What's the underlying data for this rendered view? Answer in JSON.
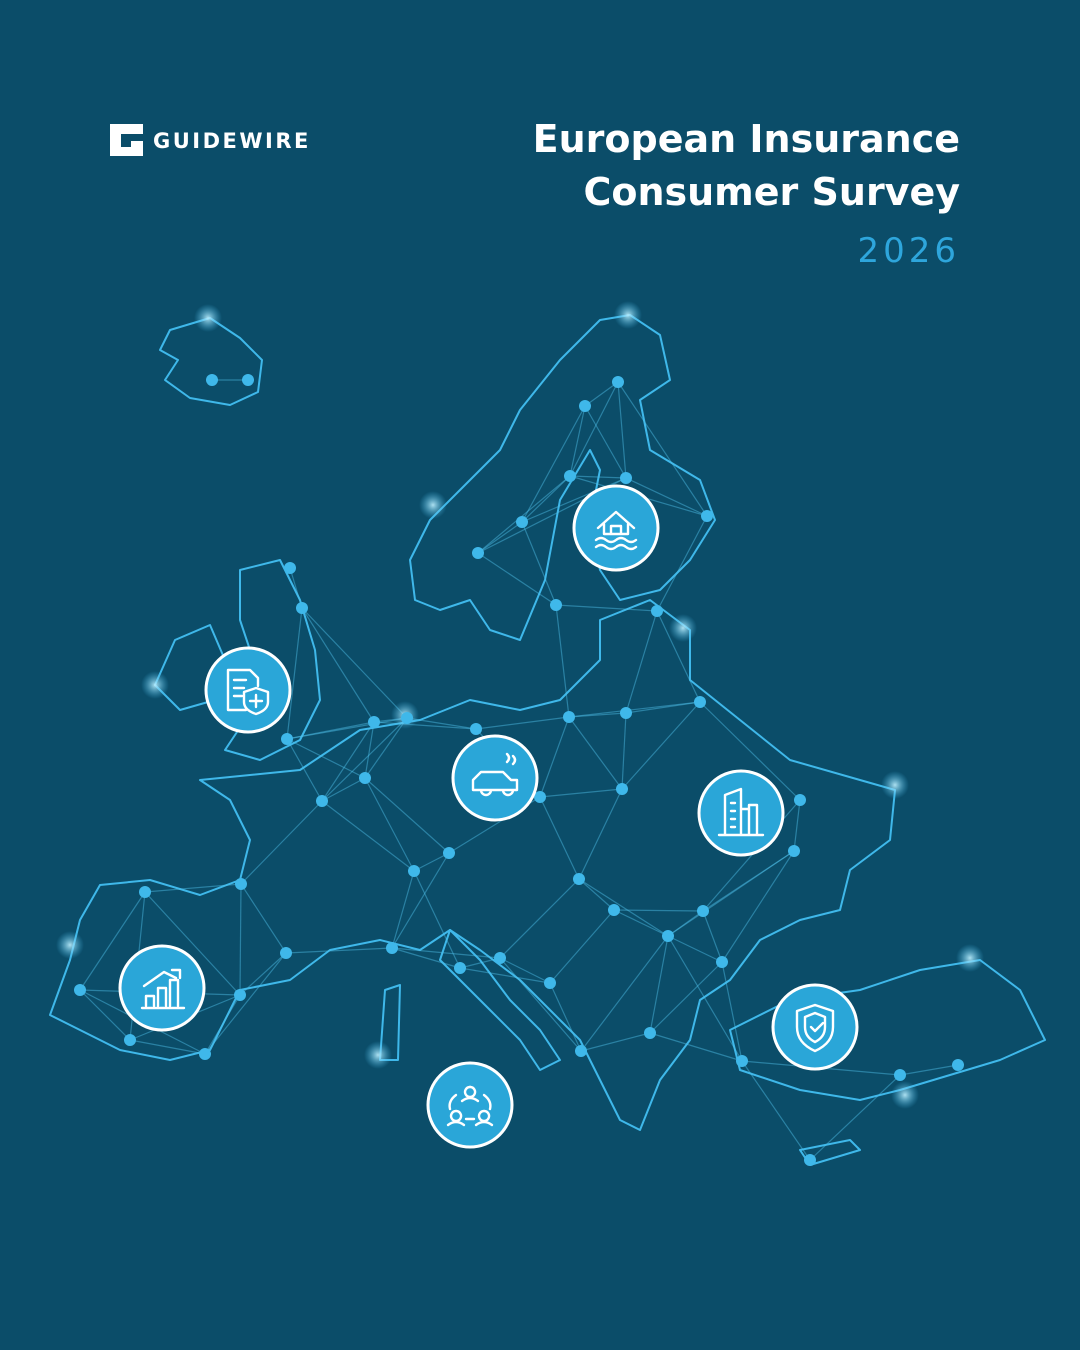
{
  "logo": {
    "text": "GUIDEWIRE"
  },
  "title": {
    "lines": [
      "European Insurance",
      "Consumer Survey"
    ],
    "year": "2026"
  }
}
